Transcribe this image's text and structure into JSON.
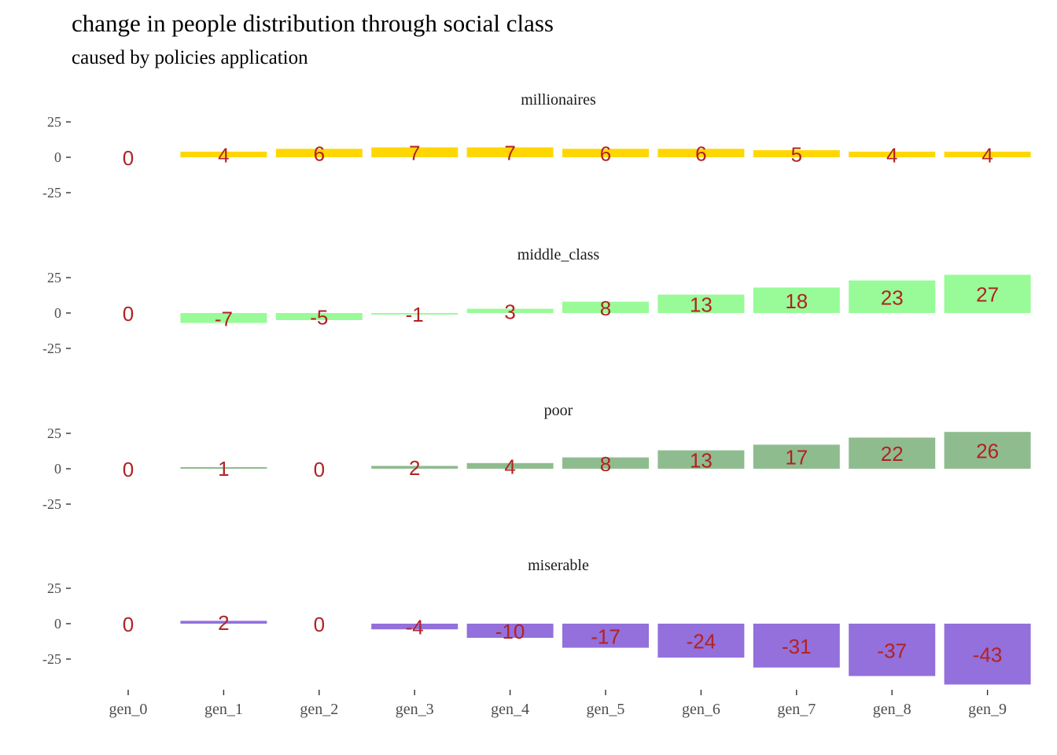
{
  "chart_data": {
    "type": "bar",
    "title": "change in people distribution through social class",
    "subtitle": "caused by policies application",
    "xlabel": "",
    "ylabel": "",
    "categories": [
      "gen_0",
      "gen_1",
      "gen_2",
      "gen_3",
      "gen_4",
      "gen_5",
      "gen_6",
      "gen_7",
      "gen_8",
      "gen_9"
    ],
    "y_ticks": [
      "25",
      "0",
      "-25"
    ],
    "y_tick_values": [
      25,
      0,
      -25
    ],
    "ylim": [
      -45,
      30
    ],
    "grid": false,
    "legend": "none",
    "label_color": "#b22222",
    "facets": [
      {
        "name": "millionaires",
        "color": "#ffd700",
        "values": [
          0,
          4,
          6,
          7,
          7,
          6,
          6,
          5,
          4,
          4
        ]
      },
      {
        "name": "middle_class",
        "color": "#98fb98",
        "values": [
          0,
          -7,
          -5,
          -1,
          3,
          8,
          13,
          18,
          23,
          27
        ]
      },
      {
        "name": "poor",
        "color": "#8fbc8f",
        "values": [
          0,
          1,
          0,
          2,
          4,
          8,
          13,
          17,
          22,
          26
        ]
      },
      {
        "name": "miserable",
        "color": "#9370db",
        "values": [
          0,
          2,
          0,
          -4,
          -10,
          -17,
          -24,
          -31,
          -37,
          -43
        ]
      }
    ]
  }
}
